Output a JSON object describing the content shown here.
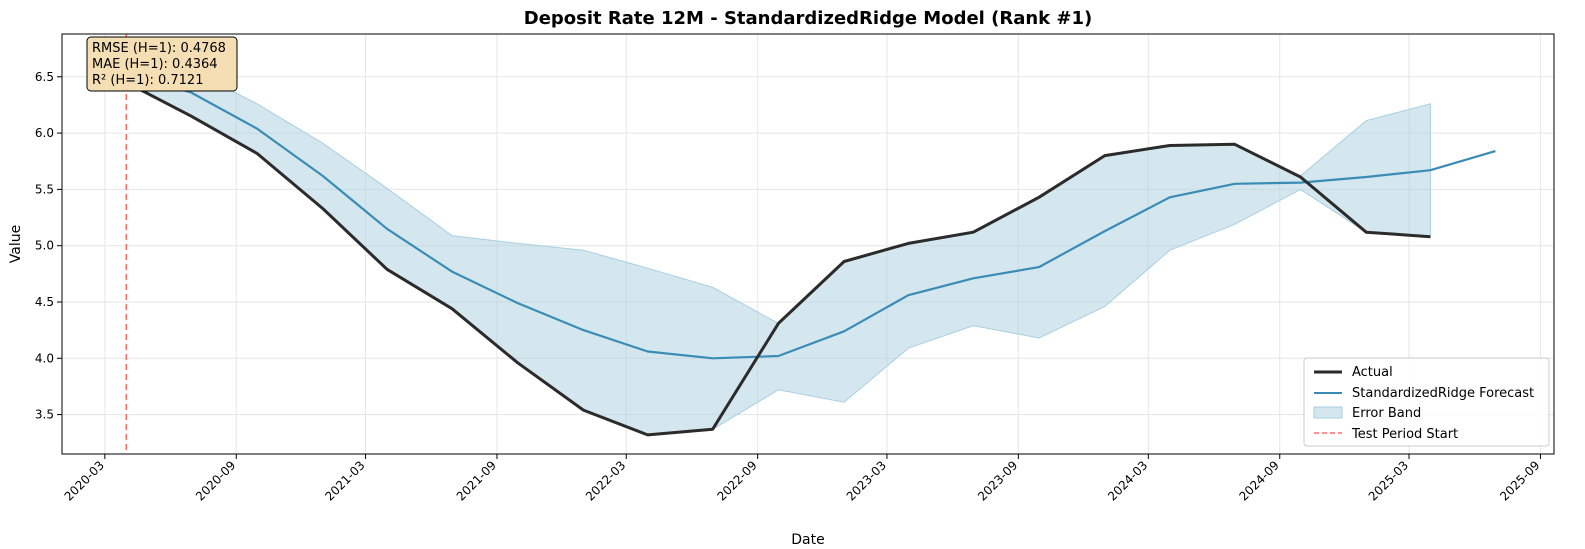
{
  "chart_data": {
    "type": "line",
    "title": "Deposit Rate 12M - StandardizedRidge Model (Rank #1)",
    "xlabel": "Date",
    "ylabel": "Value",
    "xlim": [
      "2020-01-01",
      "2025-09-20"
    ],
    "ylim": [
      3.15,
      6.88
    ],
    "grid": true,
    "x_ticks": [
      "2020-03",
      "2020-09",
      "2021-03",
      "2021-09",
      "2022-03",
      "2022-09",
      "2023-03",
      "2023-09",
      "2024-03",
      "2024-09",
      "2025-03",
      "2025-09"
    ],
    "y_ticks": [
      3.5,
      4.0,
      4.5,
      5.0,
      5.5,
      6.0,
      6.5
    ],
    "legend_position": "bottom-right",
    "series": [
      {
        "name": "Actual",
        "color": "#2b2b2b",
        "x": [
          "2020-03-31",
          "2020-06-30",
          "2020-09-30",
          "2020-12-31",
          "2021-03-31",
          "2021-06-30",
          "2021-09-30",
          "2021-12-31",
          "2022-03-31",
          "2022-06-30",
          "2022-09-30",
          "2022-12-31",
          "2023-03-31",
          "2023-06-30",
          "2023-09-30",
          "2023-12-31",
          "2024-03-31",
          "2024-06-30",
          "2024-09-30",
          "2024-12-31",
          "2025-03-31"
        ],
        "values": [
          6.45,
          6.15,
          5.82,
          5.33,
          4.79,
          4.44,
          3.96,
          3.54,
          3.32,
          3.37,
          4.31,
          4.86,
          5.02,
          5.12,
          5.43,
          5.8,
          5.89,
          5.9,
          5.61,
          5.12,
          5.08
        ]
      },
      {
        "name": "StandardizedRidge Forecast",
        "color": "#3a8cb5",
        "x": [
          "2020-03-31",
          "2020-06-30",
          "2020-09-30",
          "2020-12-31",
          "2021-03-31",
          "2021-06-30",
          "2021-09-30",
          "2021-12-31",
          "2022-03-31",
          "2022-06-30",
          "2022-09-30",
          "2022-12-31",
          "2023-03-31",
          "2023-06-30",
          "2023-09-30",
          "2023-12-31",
          "2024-03-31",
          "2024-06-30",
          "2024-09-30",
          "2024-12-31",
          "2025-03-31",
          "2025-06-30"
        ],
        "values": [
          6.53,
          6.36,
          6.04,
          5.62,
          5.15,
          4.77,
          4.49,
          4.25,
          4.06,
          4.0,
          4.02,
          4.24,
          4.56,
          4.71,
          4.81,
          5.13,
          5.43,
          5.55,
          5.56,
          5.61,
          5.67,
          5.84
        ]
      }
    ],
    "error_band": {
      "name": "Error Band",
      "color": "#a9cfe0",
      "x": [
        "2020-03-31",
        "2020-06-30",
        "2020-09-30",
        "2020-12-31",
        "2021-03-31",
        "2021-06-30",
        "2021-09-30",
        "2021-12-31",
        "2022-03-31",
        "2022-06-30",
        "2022-09-30",
        "2022-12-31",
        "2023-03-31",
        "2023-06-30",
        "2023-09-30",
        "2023-12-31",
        "2024-03-31",
        "2024-06-30",
        "2024-09-30",
        "2024-12-31",
        "2025-03-31"
      ],
      "lower": [
        6.45,
        6.15,
        5.82,
        5.33,
        4.79,
        4.44,
        3.96,
        3.54,
        3.32,
        3.37,
        3.72,
        3.61,
        4.09,
        4.29,
        4.18,
        4.46,
        4.96,
        5.19,
        5.5,
        5.12,
        5.08
      ],
      "upper": [
        6.62,
        6.56,
        6.26,
        5.91,
        5.51,
        5.09,
        5.02,
        4.96,
        4.8,
        4.63,
        4.31,
        4.86,
        5.02,
        5.13,
        5.44,
        5.8,
        5.89,
        5.9,
        5.62,
        6.11,
        6.26
      ]
    },
    "test_period_start": {
      "name": "Test Period Start",
      "x": "2020-03-31",
      "color": "#ff6b6b"
    },
    "metrics": [
      "RMSE (H=1): 0.4768",
      "MAE (H=1): 0.4364",
      "R² (H=1): 0.7121"
    ]
  }
}
